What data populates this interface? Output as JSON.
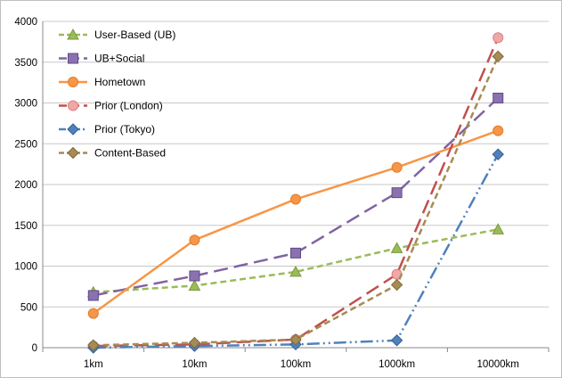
{
  "chart_data": {
    "type": "line",
    "title": "",
    "xlabel": "",
    "ylabel": "",
    "categories": [
      "1km",
      "10km",
      "100km",
      "1000km",
      "10000km"
    ],
    "ylim": [
      0,
      4000
    ],
    "yticks": [
      "0",
      "500",
      "1000",
      "1500",
      "2000",
      "2500",
      "3000",
      "3500",
      "4000"
    ],
    "grid": "horizontal",
    "legend_position": "top-left",
    "series": [
      {
        "name": "User-Based (UB)",
        "values": [
          680,
          760,
          930,
          1220,
          1450
        ],
        "color": "#9bbb59",
        "dash": "short-dash",
        "marker": "triangle"
      },
      {
        "name": "UB+Social",
        "values": [
          640,
          880,
          1160,
          1900,
          3060
        ],
        "color": "#8064a2",
        "dash": "long-dash",
        "marker": "square"
      },
      {
        "name": "Hometown",
        "values": [
          420,
          1320,
          1820,
          2210,
          2660
        ],
        "color": "#f79646",
        "dash": "solid",
        "marker": "circle"
      },
      {
        "name": "Prior (London)",
        "values": [
          20,
          40,
          100,
          900,
          3800
        ],
        "color": "#c0504d",
        "dash": "long-dash",
        "marker": "circle-pink"
      },
      {
        "name": "Prior (Tokyo)",
        "values": [
          0,
          20,
          40,
          90,
          2370
        ],
        "color": "#4f81bd",
        "dash": "dash-dot-dot",
        "marker": "diamond"
      },
      {
        "name": "Content-Based",
        "values": [
          30,
          60,
          100,
          770,
          3570
        ],
        "color": "#a68b52",
        "dash": "short-dash",
        "marker": "diamond-brown"
      }
    ]
  }
}
